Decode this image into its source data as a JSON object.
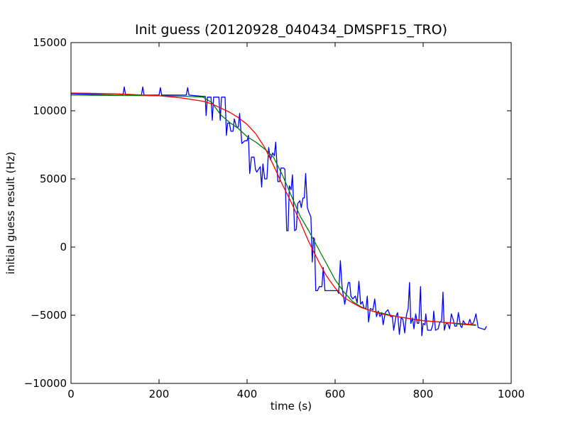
{
  "chart_data": {
    "type": "line",
    "title": "Init guess (20120928_040434_DMSPF15_TRO)",
    "xlabel": "time (s)",
    "ylabel": "initial guess result (Hz)",
    "xlim": [
      0,
      1000
    ],
    "ylim": [
      -10000,
      15000
    ],
    "xticks": [
      0,
      200,
      400,
      600,
      800,
      1000
    ],
    "yticks": [
      -10000,
      -5000,
      0,
      5000,
      10000,
      15000
    ],
    "grid": false,
    "series": [
      {
        "color": "#0000ff",
        "points": [
          [
            0,
            11250
          ],
          [
            100,
            11150
          ],
          [
            118,
            11150
          ],
          [
            121,
            11750
          ],
          [
            124,
            11150
          ],
          [
            160,
            11150
          ],
          [
            163,
            11750
          ],
          [
            166,
            11150
          ],
          [
            200,
            11150
          ],
          [
            203,
            11700
          ],
          [
            206,
            11150
          ],
          [
            262,
            11150
          ],
          [
            265,
            11700
          ],
          [
            268,
            11150
          ],
          [
            300,
            11050
          ],
          [
            305,
            11050
          ],
          [
            307,
            9650
          ],
          [
            310,
            11000
          ],
          [
            318,
            11000
          ],
          [
            321,
            9300
          ],
          [
            324,
            11000
          ],
          [
            336,
            11000
          ],
          [
            339,
            9300
          ],
          [
            342,
            11000
          ],
          [
            350,
            11000
          ],
          [
            353,
            8200
          ],
          [
            356,
            9100
          ],
          [
            360,
            9100
          ],
          [
            363,
            8500
          ],
          [
            368,
            8500
          ],
          [
            371,
            9400
          ],
          [
            376,
            8800
          ],
          [
            380,
            8800
          ],
          [
            383,
            9800
          ],
          [
            388,
            7600
          ],
          [
            395,
            7800
          ],
          [
            400,
            7800
          ],
          [
            403,
            8200
          ],
          [
            406,
            5400
          ],
          [
            410,
            6600
          ],
          [
            416,
            6600
          ],
          [
            419,
            5700
          ],
          [
            422,
            5500
          ],
          [
            426,
            5700
          ],
          [
            430,
            5900
          ],
          [
            433,
            4400
          ],
          [
            436,
            6100
          ],
          [
            440,
            5000
          ],
          [
            445,
            5000
          ],
          [
            449,
            7300
          ],
          [
            453,
            6400
          ],
          [
            458,
            6900
          ],
          [
            462,
            6700
          ],
          [
            465,
            7700
          ],
          [
            470,
            4800
          ],
          [
            474,
            4800
          ],
          [
            477,
            5800
          ],
          [
            483,
            5800
          ],
          [
            486,
            5700
          ],
          [
            490,
            1200
          ],
          [
            493,
            1200
          ],
          [
            496,
            4500
          ],
          [
            500,
            4200
          ],
          [
            503,
            5300
          ],
          [
            508,
            1200
          ],
          [
            512,
            1300
          ],
          [
            515,
            3200
          ],
          [
            520,
            3400
          ],
          [
            523,
            2900
          ],
          [
            527,
            3600
          ],
          [
            530,
            3600
          ],
          [
            533,
            5400
          ],
          [
            537,
            2900
          ],
          [
            540,
            2600
          ],
          [
            545,
            2200
          ],
          [
            548,
            -1100
          ],
          [
            551,
            700
          ],
          [
            553,
            600
          ],
          [
            556,
            -3200
          ],
          [
            560,
            -3200
          ],
          [
            564,
            -2900
          ],
          [
            570,
            -2900
          ],
          [
            573,
            -1500
          ],
          [
            577,
            -3200
          ],
          [
            585,
            -3200
          ],
          [
            605,
            -3200
          ],
          [
            608,
            -3400
          ],
          [
            612,
            -1000
          ],
          [
            616,
            -3000
          ],
          [
            622,
            -4200
          ],
          [
            626,
            -3300
          ],
          [
            630,
            -2600
          ],
          [
            633,
            -2600
          ],
          [
            636,
            -3600
          ],
          [
            640,
            -3800
          ],
          [
            646,
            -3600
          ],
          [
            650,
            -4100
          ],
          [
            654,
            -2500
          ],
          [
            658,
            -4200
          ],
          [
            662,
            -4000
          ],
          [
            666,
            -4500
          ],
          [
            670,
            -4500
          ],
          [
            673,
            -3600
          ],
          [
            676,
            -5500
          ],
          [
            680,
            -4500
          ],
          [
            686,
            -4600
          ],
          [
            690,
            -3800
          ],
          [
            694,
            -5100
          ],
          [
            698,
            -4700
          ],
          [
            702,
            -5100
          ],
          [
            706,
            -4800
          ],
          [
            709,
            -5700
          ],
          [
            714,
            -4800
          ],
          [
            720,
            -4600
          ],
          [
            726,
            -5100
          ],
          [
            730,
            -5100
          ],
          [
            733,
            -6100
          ],
          [
            738,
            -5100
          ],
          [
            742,
            -4800
          ],
          [
            746,
            -6400
          ],
          [
            750,
            -5200
          ],
          [
            754,
            -5300
          ],
          [
            758,
            -6300
          ],
          [
            762,
            -5000
          ],
          [
            766,
            -4500
          ],
          [
            769,
            -2600
          ],
          [
            772,
            -5600
          ],
          [
            776,
            -5200
          ],
          [
            779,
            -6000
          ],
          [
            783,
            -4900
          ],
          [
            787,
            -5600
          ],
          [
            790,
            -5600
          ],
          [
            794,
            -2900
          ],
          [
            797,
            -6500
          ],
          [
            800,
            -5600
          ],
          [
            804,
            -5700
          ],
          [
            806,
            -4900
          ],
          [
            810,
            -6100
          ],
          [
            818,
            -6100
          ],
          [
            822,
            -5700
          ],
          [
            824,
            -4700
          ],
          [
            828,
            -6100
          ],
          [
            834,
            -6000
          ],
          [
            838,
            -5500
          ],
          [
            842,
            -5400
          ],
          [
            845,
            -3300
          ],
          [
            848,
            -6100
          ],
          [
            852,
            -5600
          ],
          [
            856,
            -5600
          ],
          [
            860,
            -6000
          ],
          [
            864,
            -4900
          ],
          [
            868,
            -5300
          ],
          [
            872,
            -5800
          ],
          [
            876,
            -5800
          ],
          [
            880,
            -4800
          ],
          [
            885,
            -5800
          ],
          [
            888,
            -5900
          ],
          [
            891,
            -5400
          ],
          [
            895,
            -5600
          ],
          [
            902,
            -5700
          ],
          [
            906,
            -5300
          ],
          [
            910,
            -5700
          ],
          [
            915,
            -5500
          ],
          [
            920,
            -4900
          ],
          [
            925,
            -5900
          ],
          [
            935,
            -6000
          ],
          [
            940,
            -6050
          ],
          [
            944,
            -5800
          ]
        ]
      },
      {
        "color": "#008000",
        "points": [
          [
            0,
            11150
          ],
          [
            100,
            11130
          ],
          [
            200,
            11100
          ],
          [
            260,
            11060
          ],
          [
            300,
            11000
          ],
          [
            320,
            10600
          ],
          [
            340,
            9700
          ],
          [
            360,
            9150
          ],
          [
            380,
            8700
          ],
          [
            400,
            8100
          ],
          [
            420,
            7700
          ],
          [
            440,
            7200
          ],
          [
            460,
            6600
          ],
          [
            480,
            5300
          ],
          [
            500,
            3800
          ],
          [
            520,
            2300
          ],
          [
            540,
            1200
          ],
          [
            560,
            0
          ],
          [
            580,
            -1200
          ],
          [
            600,
            -2400
          ],
          [
            620,
            -3300
          ],
          [
            640,
            -4000
          ],
          [
            660,
            -4400
          ],
          [
            680,
            -4650
          ],
          [
            700,
            -4800
          ],
          [
            720,
            -4950
          ],
          [
            740,
            -5100
          ],
          [
            760,
            -5200
          ],
          [
            780,
            -5300
          ],
          [
            800,
            -5400
          ],
          [
            820,
            -5450
          ],
          [
            840,
            -5500
          ],
          [
            860,
            -5550
          ],
          [
            880,
            -5650
          ],
          [
            900,
            -5700
          ],
          [
            920,
            -5750
          ]
        ]
      },
      {
        "color": "#ff0000",
        "points": [
          [
            0,
            11300
          ],
          [
            100,
            11250
          ],
          [
            200,
            11100
          ],
          [
            250,
            10950
          ],
          [
            300,
            10700
          ],
          [
            320,
            10500
          ],
          [
            340,
            10200
          ],
          [
            360,
            9900
          ],
          [
            380,
            9500
          ],
          [
            400,
            9000
          ],
          [
            420,
            8300
          ],
          [
            440,
            7300
          ],
          [
            460,
            6000
          ],
          [
            480,
            4600
          ],
          [
            500,
            3300
          ],
          [
            520,
            1900
          ],
          [
            540,
            400
          ],
          [
            560,
            -900
          ],
          [
            580,
            -2100
          ],
          [
            600,
            -3000
          ],
          [
            620,
            -3700
          ],
          [
            640,
            -4100
          ],
          [
            660,
            -4450
          ],
          [
            680,
            -4650
          ],
          [
            700,
            -4850
          ],
          [
            720,
            -5000
          ],
          [
            740,
            -5100
          ],
          [
            760,
            -5200
          ],
          [
            780,
            -5300
          ],
          [
            800,
            -5400
          ],
          [
            820,
            -5450
          ],
          [
            840,
            -5500
          ],
          [
            860,
            -5550
          ],
          [
            880,
            -5600
          ],
          [
            900,
            -5650
          ],
          [
            920,
            -5700
          ]
        ]
      }
    ]
  }
}
